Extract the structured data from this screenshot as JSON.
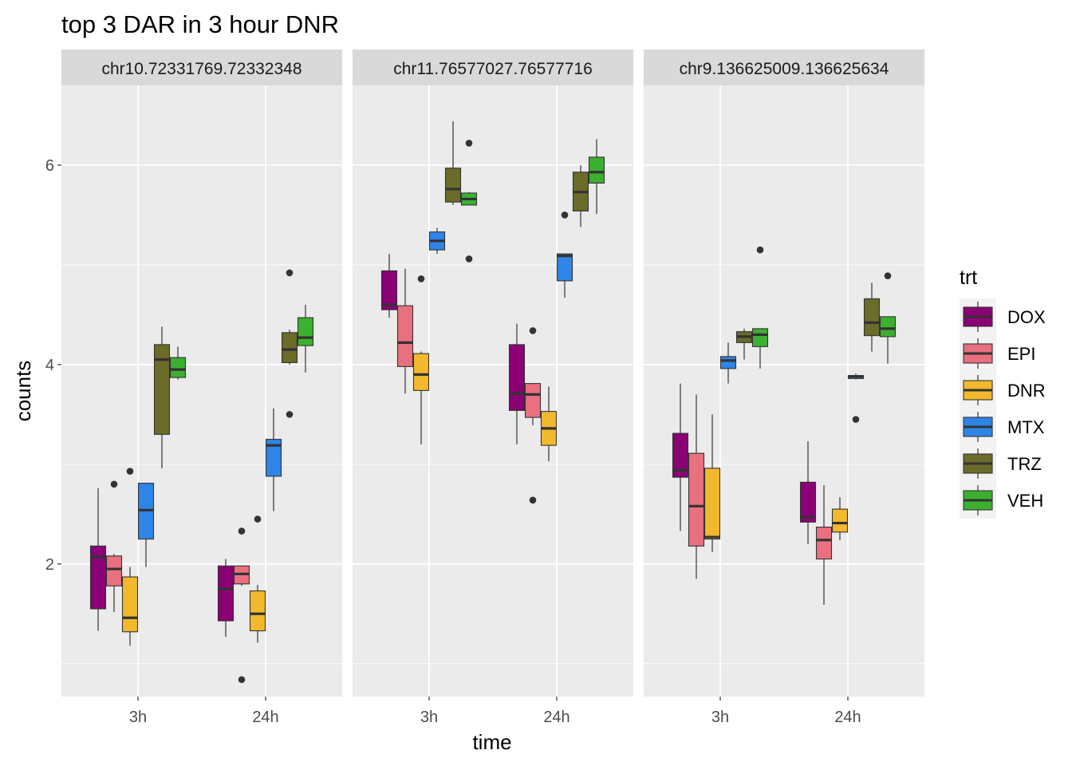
{
  "chart_data": {
    "type": "boxplot",
    "title": "top 3 DAR in 3 hour DNR",
    "xlabel": "time",
    "ylabel": "counts",
    "x_categories": [
      "3h",
      "24h"
    ],
    "y_ticks": [
      2,
      4,
      6
    ],
    "ylim": [
      0.67,
      6.8
    ],
    "grid": true,
    "legend": {
      "title": "trt",
      "position": "right",
      "entries": [
        {
          "name": "DOX",
          "color": "#8b0075"
        },
        {
          "name": "EPI",
          "color": "#e8707f"
        },
        {
          "name": "DNR",
          "color": "#f2b82e"
        },
        {
          "name": "MTX",
          "color": "#2f84e6"
        },
        {
          "name": "TRZ",
          "color": "#6b6b2a"
        },
        {
          "name": "VEH",
          "color": "#3cb030"
        }
      ]
    },
    "panels": [
      {
        "label": "chr10.72331769.72332348",
        "groups": {
          "3h": [
            {
              "trt": "DOX",
              "min": 1.33,
              "q1": 1.55,
              "median": 2.07,
              "q3": 2.18,
              "max": 2.76,
              "outliers": []
            },
            {
              "trt": "EPI",
              "min": 1.52,
              "q1": 1.78,
              "median": 1.95,
              "q3": 2.08,
              "max": 2.1,
              "outliers": [
                2.8
              ]
            },
            {
              "trt": "DNR",
              "min": 1.18,
              "q1": 1.32,
              "median": 1.46,
              "q3": 1.87,
              "max": 1.97,
              "outliers": [
                2.93
              ]
            },
            {
              "trt": "MTX",
              "min": 1.97,
              "q1": 2.25,
              "median": 2.54,
              "q3": 2.81,
              "max": 2.81,
              "outliers": []
            },
            {
              "trt": "TRZ",
              "min": 2.96,
              "q1": 3.3,
              "median": 4.05,
              "q3": 4.2,
              "max": 4.38,
              "outliers": []
            },
            {
              "trt": "VEH",
              "min": 3.85,
              "q1": 3.87,
              "median": 3.95,
              "q3": 4.07,
              "max": 4.18,
              "outliers": []
            }
          ],
          "24h": [
            {
              "trt": "DOX",
              "min": 1.27,
              "q1": 1.43,
              "median": 1.75,
              "q3": 1.98,
              "max": 2.05,
              "outliers": []
            },
            {
              "trt": "EPI",
              "min": 1.78,
              "q1": 1.8,
              "median": 1.9,
              "q3": 1.98,
              "max": 1.98,
              "outliers": [
                0.84,
                2.33
              ]
            },
            {
              "trt": "DNR",
              "min": 1.21,
              "q1": 1.33,
              "median": 1.5,
              "q3": 1.73,
              "max": 1.79,
              "outliers": [
                2.45
              ]
            },
            {
              "trt": "MTX",
              "min": 2.53,
              "q1": 2.88,
              "median": 3.19,
              "q3": 3.25,
              "max": 3.56,
              "outliers": []
            },
            {
              "trt": "TRZ",
              "min": 4.0,
              "q1": 4.02,
              "median": 4.15,
              "q3": 4.32,
              "max": 4.35,
              "outliers": [
                3.5,
                4.92
              ]
            },
            {
              "trt": "VEH",
              "min": 3.92,
              "q1": 4.19,
              "median": 4.27,
              "q3": 4.47,
              "max": 4.6,
              "outliers": []
            }
          ]
        }
      },
      {
        "label": "chr11.76577027.76577716",
        "groups": {
          "3h": [
            {
              "trt": "DOX",
              "min": 4.47,
              "q1": 4.55,
              "median": 4.6,
              "q3": 4.94,
              "max": 5.11,
              "outliers": []
            },
            {
              "trt": "EPI",
              "min": 3.71,
              "q1": 3.98,
              "median": 4.22,
              "q3": 4.59,
              "max": 4.96,
              "outliers": []
            },
            {
              "trt": "DNR",
              "min": 3.2,
              "q1": 3.74,
              "median": 3.9,
              "q3": 4.11,
              "max": 4.13,
              "outliers": [
                4.86
              ]
            },
            {
              "trt": "MTX",
              "min": 5.11,
              "q1": 5.15,
              "median": 5.24,
              "q3": 5.33,
              "max": 5.37,
              "outliers": []
            },
            {
              "trt": "TRZ",
              "min": 5.6,
              "q1": 5.63,
              "median": 5.76,
              "q3": 5.97,
              "max": 6.44,
              "outliers": []
            },
            {
              "trt": "VEH",
              "min": 5.6,
              "q1": 5.6,
              "median": 5.66,
              "q3": 5.72,
              "max": 5.73,
              "outliers": [
                5.06,
                6.22
              ]
            }
          ],
          "24h": [
            {
              "trt": "DOX",
              "min": 3.2,
              "q1": 3.54,
              "median": 3.71,
              "q3": 4.2,
              "max": 4.41,
              "outliers": []
            },
            {
              "trt": "EPI",
              "min": 3.39,
              "q1": 3.47,
              "median": 3.7,
              "q3": 3.81,
              "max": 3.81,
              "outliers": [
                2.64,
                4.34
              ]
            },
            {
              "trt": "DNR",
              "min": 3.03,
              "q1": 3.19,
              "median": 3.36,
              "q3": 3.53,
              "max": 3.78,
              "outliers": []
            },
            {
              "trt": "MTX",
              "min": 4.67,
              "q1": 4.84,
              "median": 5.09,
              "q3": 5.11,
              "max": 5.11,
              "outliers": [
                5.5
              ]
            },
            {
              "trt": "TRZ",
              "min": 5.38,
              "q1": 5.54,
              "median": 5.73,
              "q3": 5.93,
              "max": 6.0,
              "outliers": []
            },
            {
              "trt": "VEH",
              "min": 5.51,
              "q1": 5.82,
              "median": 5.93,
              "q3": 6.08,
              "max": 6.26,
              "outliers": []
            }
          ]
        }
      },
      {
        "label": "chr9.136625009.136625634",
        "groups": {
          "3h": [
            {
              "trt": "DOX",
              "min": 2.33,
              "q1": 2.87,
              "median": 2.94,
              "q3": 3.31,
              "max": 3.81,
              "outliers": []
            },
            {
              "trt": "EPI",
              "min": 1.85,
              "q1": 2.18,
              "median": 2.58,
              "q3": 3.11,
              "max": 3.7,
              "outliers": []
            },
            {
              "trt": "DNR",
              "min": 2.12,
              "q1": 2.25,
              "median": 2.27,
              "q3": 2.96,
              "max": 3.5,
              "outliers": []
            },
            {
              "trt": "MTX",
              "min": 3.81,
              "q1": 3.96,
              "median": 4.04,
              "q3": 4.08,
              "max": 4.22,
              "outliers": []
            },
            {
              "trt": "TRZ",
              "min": 4.05,
              "q1": 4.22,
              "median": 4.28,
              "q3": 4.33,
              "max": 4.36,
              "outliers": []
            },
            {
              "trt": "VEH",
              "min": 3.96,
              "q1": 4.18,
              "median": 4.3,
              "q3": 4.36,
              "max": 4.36,
              "outliers": [
                5.15
              ]
            }
          ],
          "24h": [
            {
              "trt": "DOX",
              "min": 2.2,
              "q1": 2.42,
              "median": 2.47,
              "q3": 2.82,
              "max": 3.23,
              "outliers": []
            },
            {
              "trt": "EPI",
              "min": 1.59,
              "q1": 2.05,
              "median": 2.24,
              "q3": 2.37,
              "max": 2.79,
              "outliers": []
            },
            {
              "trt": "DNR",
              "min": 2.24,
              "q1": 2.32,
              "median": 2.41,
              "q3": 2.55,
              "max": 2.67,
              "outliers": []
            },
            {
              "trt": "MTX",
              "min": 3.85,
              "q1": 3.86,
              "median": 3.88,
              "q3": 3.89,
              "max": 3.91,
              "outliers": [
                3.45
              ]
            },
            {
              "trt": "TRZ",
              "min": 4.13,
              "q1": 4.29,
              "median": 4.42,
              "q3": 4.66,
              "max": 4.82,
              "outliers": []
            },
            {
              "trt": "VEH",
              "min": 4.01,
              "q1": 4.28,
              "median": 4.36,
              "q3": 4.48,
              "max": 4.48,
              "outliers": [
                4.89
              ]
            }
          ]
        }
      }
    ]
  }
}
